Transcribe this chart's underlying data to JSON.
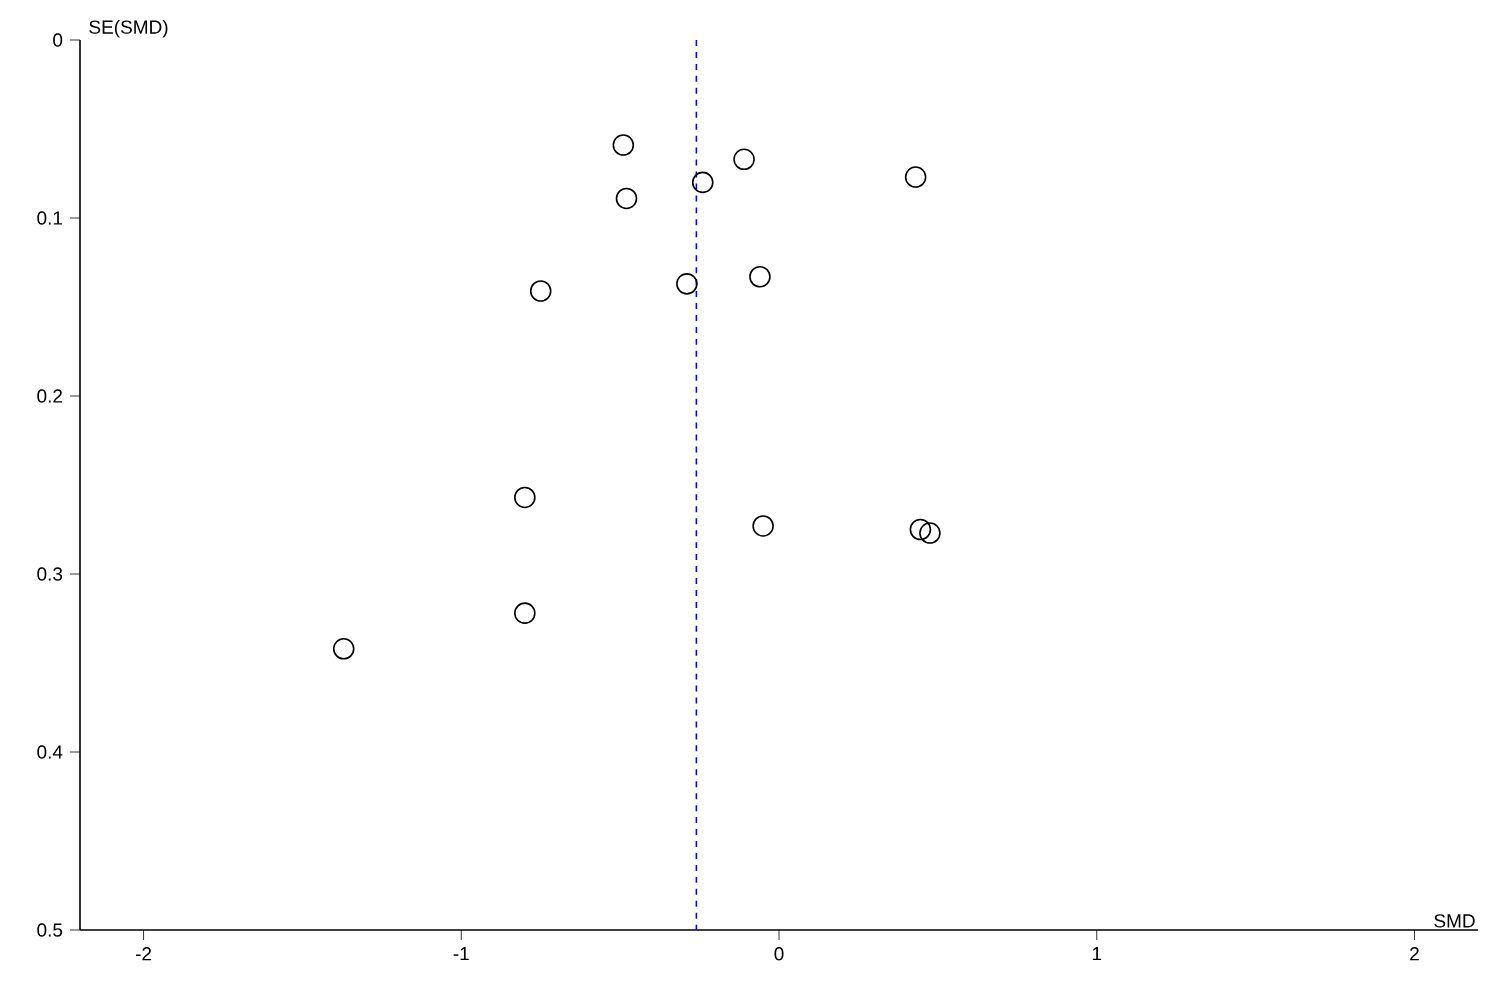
{
  "chart_data": {
    "type": "scatter",
    "xlabel": "SMD",
    "ylabel": "SE(SMD)",
    "x": [
      -0.49,
      -0.11,
      -0.24,
      0.43,
      -0.48,
      -0.75,
      -0.29,
      -0.06,
      -0.8,
      -0.05,
      0.445,
      0.475,
      -0.8,
      -1.37
    ],
    "values": [
      0.059,
      0.067,
      0.08,
      0.077,
      0.089,
      0.141,
      0.137,
      0.133,
      0.257,
      0.273,
      0.275,
      0.277,
      0.322,
      0.342
    ],
    "color": "#000000",
    "marker": "circle",
    "xlim": [
      -2.2,
      2.2
    ],
    "ylim": [
      0.5,
      0
    ],
    "xticks": [
      -2,
      -1,
      0,
      1,
      2
    ],
    "yticks": [
      0,
      0.1,
      0.2,
      0.3,
      0.4,
      0.5
    ],
    "ref_lines": [
      {
        "axis": "x",
        "value": -0.26,
        "color": "#0000ff",
        "line_style": "dashed"
      }
    ]
  }
}
